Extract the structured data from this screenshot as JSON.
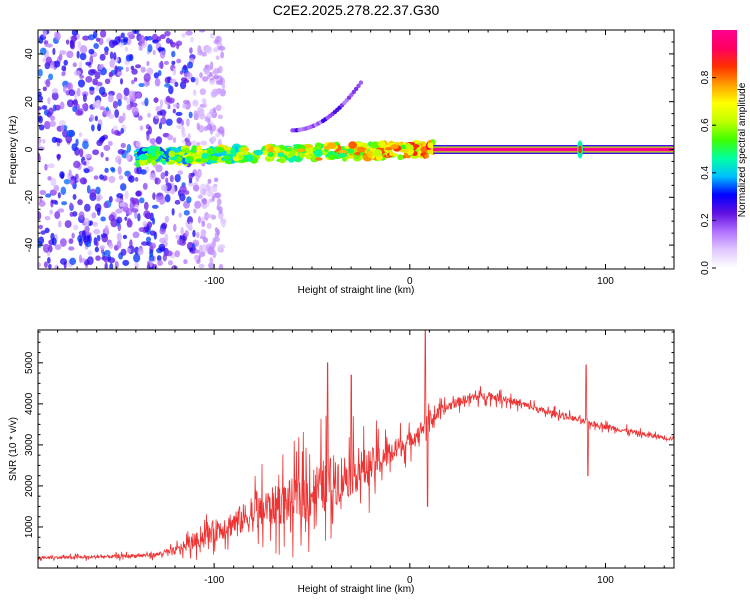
{
  "title": "C2E2.2025.278.22.37.G30",
  "chart_data": [
    {
      "type": "heatmap",
      "xlabel": "Height of straight line (km)",
      "ylabel": "Frequency (Hz)",
      "xlim": [
        -190,
        135
      ],
      "ylim": [
        -50,
        50
      ],
      "xticks": [
        -100,
        0,
        100
      ],
      "yticks": [
        -40,
        -20,
        0,
        20,
        40
      ],
      "colorbar": {
        "label": "Normalized spectral amplitude",
        "range": [
          0,
          1
        ],
        "ticks": [
          0.0,
          0.2,
          0.4,
          0.6,
          0.8
        ],
        "tick_labels": [
          "0.0",
          "0.2",
          "0.4",
          "0.6",
          "0.8"
        ],
        "colors": [
          "#ffffff",
          "#e0c8ff",
          "#b070ff",
          "#6010e0",
          "#0000ff",
          "#00c0ff",
          "#00ffa0",
          "#40ff00",
          "#c0ff00",
          "#ffff00",
          "#ffa000",
          "#ff3000",
          "#ff0060",
          "#ff0090"
        ]
      },
      "features": [
        {
          "name": "broadband noise",
          "x_range": [
            -190,
            -110
          ],
          "freq_range": [
            -50,
            50
          ],
          "amplitude": 0.15
        },
        {
          "name": "meteor signal band",
          "x_range": [
            -140,
            12
          ],
          "freq_range": [
            -4,
            3
          ],
          "amplitude": 0.6
        },
        {
          "name": "carrier line",
          "x_range": [
            12,
            135
          ],
          "freq": 0,
          "amplitude": 1.0
        },
        {
          "name": "drifting trail",
          "x_range": [
            -60,
            -25
          ],
          "freq_range": [
            8,
            28
          ],
          "amplitude": 0.2
        }
      ]
    },
    {
      "type": "line",
      "xlabel": "Height of straight line (km)",
      "ylabel": "SNR (10 * v/v)",
      "xlim": [
        -190,
        135
      ],
      "ylim": [
        0,
        5800
      ],
      "xticks": [
        -100,
        0,
        100
      ],
      "yticks": [
        1000,
        2000,
        3000,
        4000,
        5000
      ],
      "series_color": "#ee3333",
      "series": [
        {
          "name": "SNR",
          "x": [
            -190,
            -170,
            -150,
            -130,
            -120,
            -110,
            -100,
            -90,
            -80,
            -70,
            -60,
            -50,
            -40,
            -30,
            -20,
            -10,
            0,
            10,
            20,
            30,
            40,
            50,
            60,
            70,
            80,
            90,
            100,
            110,
            120,
            135
          ],
          "y": [
            250,
            260,
            280,
            320,
            420,
            650,
            900,
            1100,
            1300,
            1500,
            1650,
            1850,
            2100,
            2300,
            2500,
            2800,
            3100,
            3600,
            3950,
            4150,
            4200,
            4100,
            3950,
            3800,
            3700,
            3550,
            3450,
            3350,
            3250,
            3150
          ],
          "spread": [
            50,
            60,
            70,
            90,
            150,
            300,
            450,
            550,
            700,
            800,
            900,
            1100,
            1100,
            900,
            700,
            500,
            350,
            280,
            200,
            180,
            160,
            150,
            140,
            130,
            120,
            110,
            110,
            100,
            100,
            90
          ]
        }
      ],
      "spikes": [
        {
          "x": -42,
          "y": 5000
        },
        {
          "x": -30,
          "y": 4700
        },
        {
          "x": 8,
          "y": 5800
        },
        {
          "x": 9,
          "y": 1500
        },
        {
          "x": 90,
          "y": 4950
        },
        {
          "x": 91,
          "y": 2250
        }
      ]
    }
  ]
}
